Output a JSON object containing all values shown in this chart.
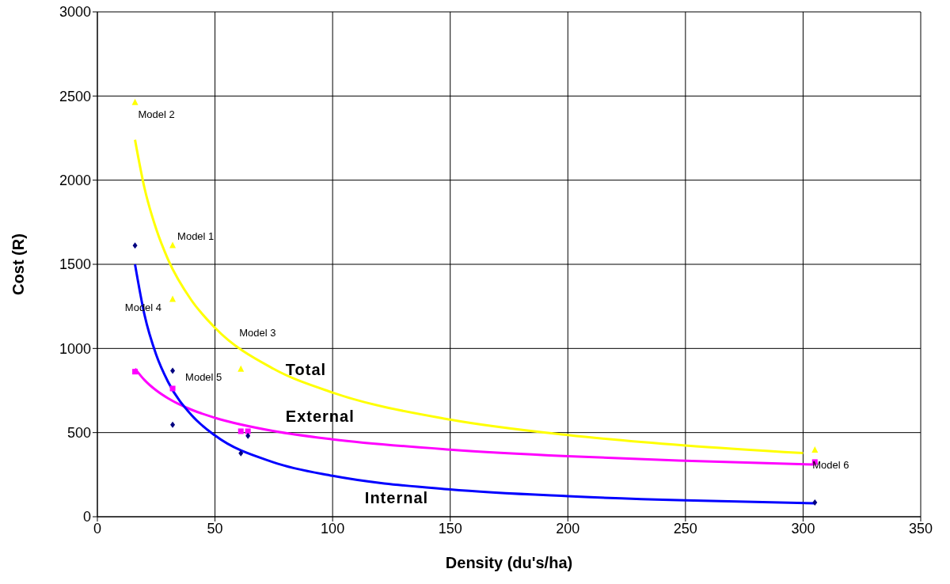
{
  "chart_data": {
    "type": "scatter",
    "xlabel": "Density (du's/ha)",
    "ylabel": "Cost (R)",
    "xlim": [
      0,
      350
    ],
    "xticks": [
      0,
      50,
      100,
      150,
      200,
      250,
      300,
      350
    ],
    "ylim": [
      0,
      3000
    ],
    "yticks": [
      0,
      500,
      1000,
      1500,
      2000,
      2500,
      3000
    ],
    "grid": true,
    "legend": false,
    "series": [
      {
        "marker": "triangle",
        "color": "#ffff00",
        "x": [
          16,
          32,
          32,
          61,
          305
        ],
        "values": [
          2465,
          1615,
          1295,
          880,
          400
        ]
      },
      {
        "marker": "square",
        "color": "#ff00ff",
        "x": [
          16,
          32,
          61,
          64,
          305
        ],
        "values": [
          862,
          762,
          508,
          508,
          325
        ]
      },
      {
        "marker": "diamond",
        "color": "#000080",
        "x": [
          16,
          32,
          32,
          61,
          64,
          305
        ],
        "values": [
          1612,
          868,
          547,
          377,
          481,
          85
        ]
      },
      {
        "type": "line",
        "name": "Total",
        "marker": "none",
        "color": "#ffff00",
        "x": [
          16,
          20,
          25,
          30,
          40,
          50,
          75,
          100,
          150,
          200,
          250,
          300
        ],
        "values": [
          2240,
          1955,
          1710,
          1530,
          1286,
          1123,
          878,
          738,
          577,
          485,
          423,
          378
        ]
      },
      {
        "type": "line",
        "name": "External",
        "marker": "none",
        "color": "#ff00ff",
        "x": [
          16,
          20,
          25,
          30,
          40,
          50,
          75,
          100,
          150,
          200,
          250,
          305
        ],
        "values": [
          880,
          813,
          751,
          704,
          636,
          588,
          509,
          460,
          399,
          360,
          333,
          310
        ]
      },
      {
        "type": "line",
        "name": "Internal",
        "marker": "none",
        "color": "#0000ff",
        "x": [
          16,
          20,
          25,
          30,
          40,
          50,
          75,
          100,
          150,
          200,
          250,
          305
        ],
        "values": [
          1500,
          1202,
          963,
          803,
          604,
          483,
          323,
          243,
          162,
          122,
          97,
          80
        ]
      }
    ],
    "annotations": [
      {
        "text": "Model 2",
        "x": 16,
        "y": 2465
      },
      {
        "text": "Model 1",
        "x": 32,
        "y": 1615
      },
      {
        "text": "Model 4",
        "x": 32,
        "y": 1295
      },
      {
        "text": "Model 3",
        "x": 61,
        "y": 880
      },
      {
        "text": "Model 5",
        "x": 32,
        "y": 868
      },
      {
        "text": "Model 6",
        "x": 305,
        "y": 325
      }
    ]
  }
}
